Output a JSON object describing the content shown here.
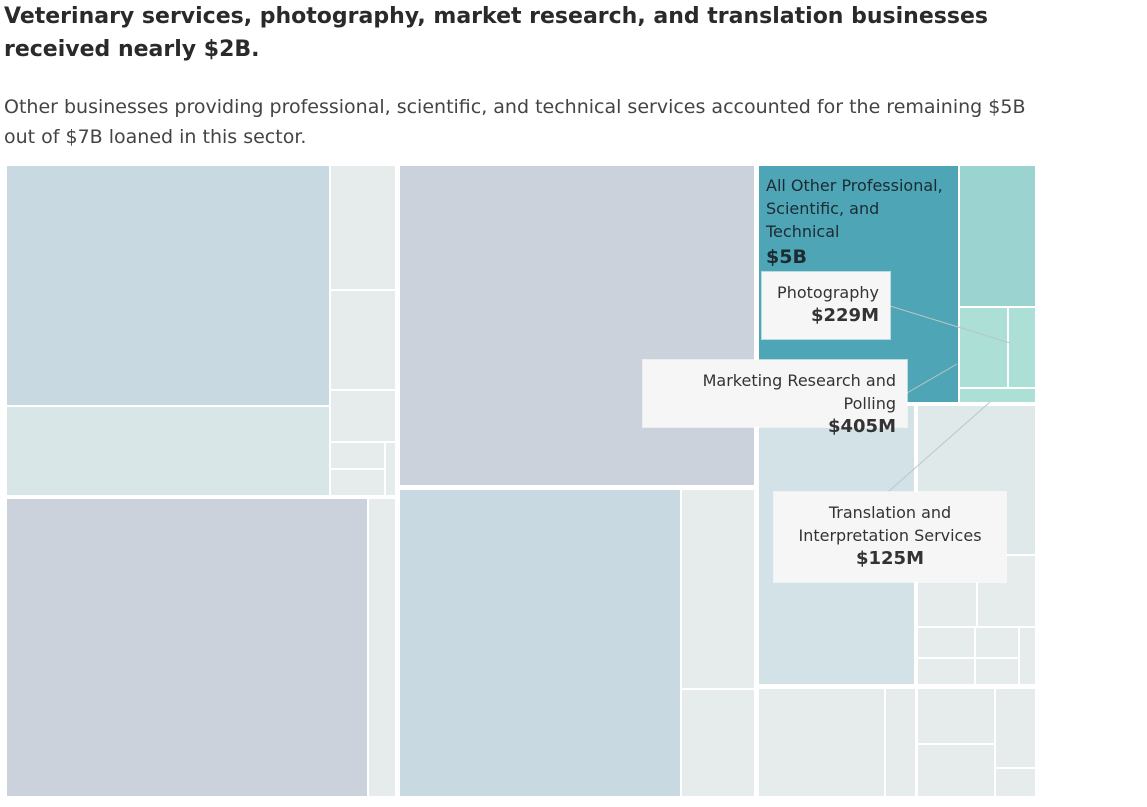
{
  "title": "Veterinary services, photography, market research, and translation businesses received nearly $2B.",
  "subtitle": "Other businesses providing professional, scientific, and technical services accounted for the remaining $5B out of $7B loaned in this sector.",
  "colors": {
    "highlight_main": "#4ea5b5",
    "highlight_teal": "#9ad3cf",
    "highlight_light_teal": "#acdfd5",
    "muted_blue": "#c9d9e1",
    "muted_slate": "#cbd2dc",
    "muted_pale": "#dfe9e9",
    "muted_lighter": "#e6ecec",
    "callout_bg": "#f6f6f6",
    "leader_line": "#b8c6c8"
  },
  "chart_data": {
    "type": "treemap",
    "highlighted": [
      {
        "name": "All Other Professional, Scientific, and Technical",
        "value_label": "$5B"
      },
      {
        "name": "Photography",
        "value_label": "$229M"
      },
      {
        "name": "Marketing Research and Polling",
        "value_label": "$405M"
      },
      {
        "name": "Translation and Interpretation Services",
        "value_label": "$125M"
      }
    ]
  },
  "labels": {
    "main_name": "All Other Professional, Scientific, and Technical",
    "main_value": "$5B",
    "photo_name": "Photography",
    "photo_value": "$229M",
    "market_name": "Marketing Research and Polling",
    "market_value": "$405M",
    "translation_name": "Translation and Interpretation Services",
    "translation_value": "$125M"
  }
}
